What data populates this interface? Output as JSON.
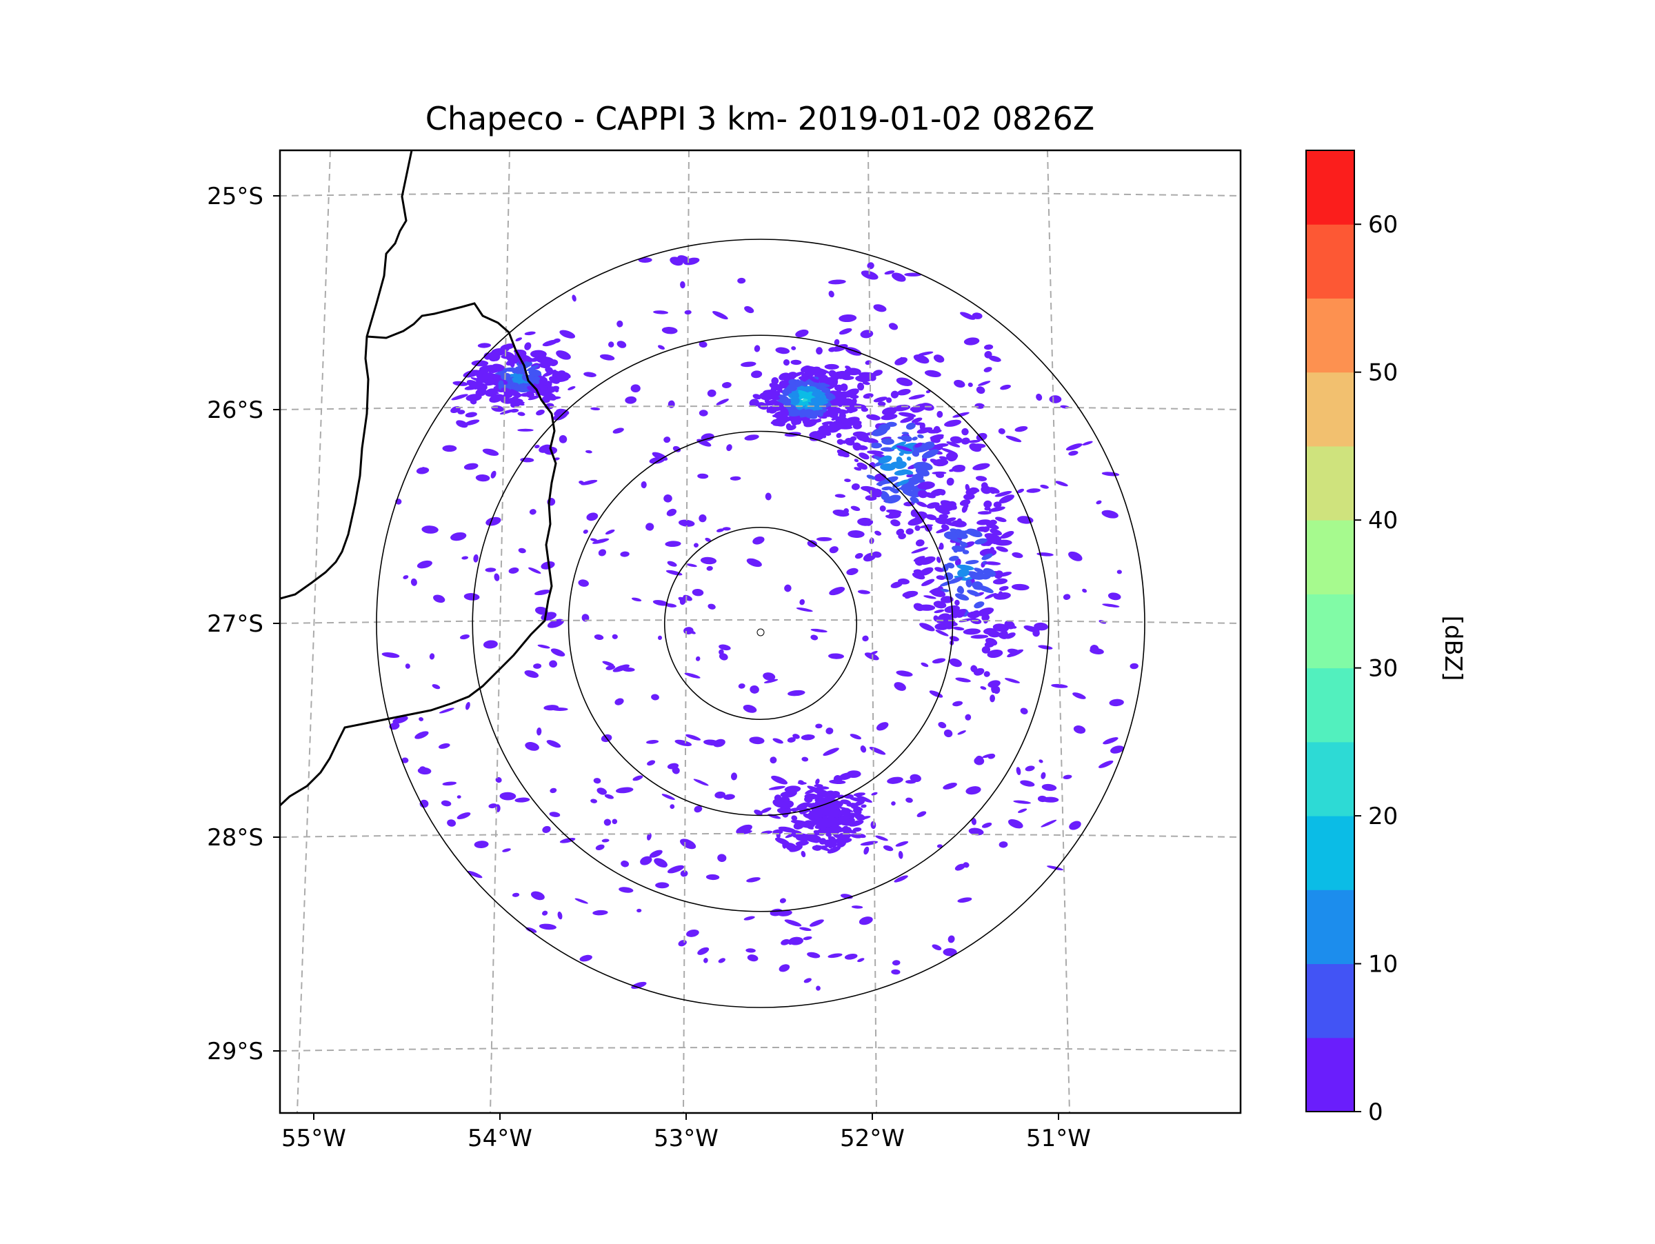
{
  "chart_data": {
    "type": "radar_ppi_map",
    "title": "Chapeco - CAPPI 3 km- 2019-01-02 0826Z",
    "x_ticks": [
      "55°W",
      "54°W",
      "53°W",
      "52°W",
      "51°W"
    ],
    "y_ticks": [
      "25°S",
      "26°S",
      "27°S",
      "28°S",
      "29°S"
    ],
    "lon_range": [
      -55.2,
      -50.1
    ],
    "lat_range": [
      -29.3,
      -24.8
    ],
    "radar_center": {
      "lon": -52.6,
      "lat": -27.0
    },
    "range_rings_km": [
      50,
      100,
      150,
      200
    ],
    "colorbar": {
      "label": "[dBZ]",
      "min": 0,
      "max": 65,
      "ticks": [
        0,
        10,
        20,
        30,
        40,
        50,
        60
      ],
      "tick_labels": [
        "0",
        "10",
        "20",
        "30",
        "40",
        "50",
        "60"
      ],
      "bins": [
        {
          "min": 0,
          "max": 5,
          "color": "#6a1efc"
        },
        {
          "min": 5,
          "max": 10,
          "color": "#4254f5"
        },
        {
          "min": 10,
          "max": 15,
          "color": "#1c8ded"
        },
        {
          "min": 15,
          "max": 20,
          "color": "#0bbce6"
        },
        {
          "min": 20,
          "max": 25,
          "color": "#2ddad5"
        },
        {
          "min": 25,
          "max": 30,
          "color": "#52f0be"
        },
        {
          "min": 30,
          "max": 35,
          "color": "#81fba6"
        },
        {
          "min": 35,
          "max": 40,
          "color": "#a6fa8e"
        },
        {
          "min": 40,
          "max": 45,
          "color": "#cfe37d"
        },
        {
          "min": 45,
          "max": 50,
          "color": "#f2c06f"
        },
        {
          "min": 50,
          "max": 55,
          "color": "#fd9150"
        },
        {
          "min": 55,
          "max": 60,
          "color": "#fd5834"
        },
        {
          "min": 60,
          "max": 65,
          "color": "#fb1e1c"
        }
      ]
    },
    "echo_clusters": [
      {
        "name": "north-convective-cell",
        "lon": -52.35,
        "lat": -25.95,
        "dbz_max": 22
      },
      {
        "name": "northeast-band",
        "lon": -51.85,
        "lat": -26.25,
        "dbz_max": 15
      },
      {
        "name": "east-band",
        "lon": -51.5,
        "lat": -26.75,
        "dbz_max": 12
      },
      {
        "name": "northwest-patch",
        "lon": -53.9,
        "lat": -25.85,
        "dbz_max": 12
      },
      {
        "name": "south-patch",
        "lon": -52.25,
        "lat": -27.9,
        "dbz_max": 5
      }
    ]
  }
}
